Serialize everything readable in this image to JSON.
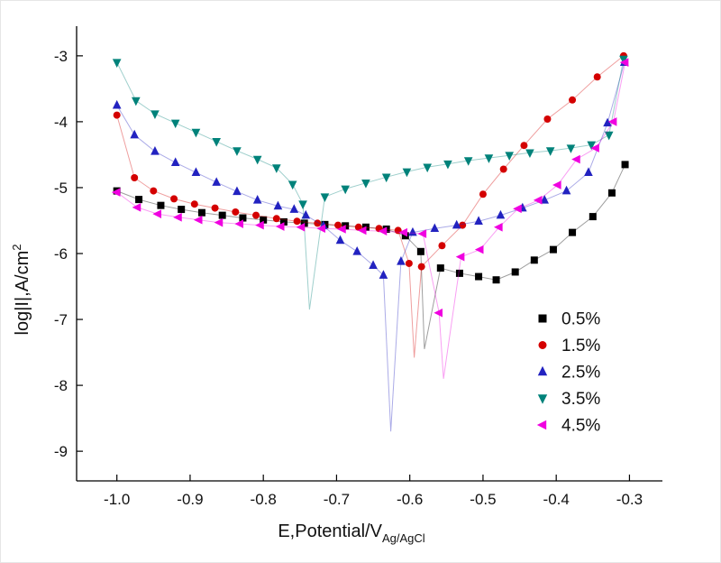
{
  "figure": {
    "background": "#ffffff",
    "border_color": "#e6e6e6"
  },
  "chart_data": {
    "type": "scatter",
    "title": "",
    "xlabel": {
      "text": "E,Potential/V",
      "subscript": "Ag/AgCl"
    },
    "ylabel": {
      "text": "log|I|,A/cm",
      "superscript": "2"
    },
    "xlim": [
      -1.055,
      -0.255
    ],
    "ylim": [
      -9.45,
      -2.55
    ],
    "grid": false,
    "axis_color": "#000000",
    "xticks": {
      "values": [
        -1.0,
        -0.9,
        -0.8,
        -0.7,
        -0.6,
        -0.5,
        -0.4,
        -0.3
      ],
      "labels": [
        "-1.0",
        "-0.9",
        "-0.8",
        "-0.7",
        "-0.6",
        "-0.5",
        "-0.4",
        "-0.3"
      ]
    },
    "yticks": {
      "values": [
        -9,
        -8,
        -7,
        -6,
        -5,
        -4,
        -3
      ],
      "labels": [
        "-9",
        "-8",
        "-7",
        "-6",
        "-5",
        "-4",
        "-3"
      ]
    },
    "legend": {
      "position": "inside-lower-right"
    },
    "series": [
      {
        "name": "0.5%",
        "marker": "square",
        "color": "#000000",
        "points": [
          [
            -1.0,
            -5.05
          ],
          [
            -0.97,
            -5.18
          ],
          [
            -0.94,
            -5.27
          ],
          [
            -0.912,
            -5.33
          ],
          [
            -0.884,
            -5.38
          ],
          [
            -0.856,
            -5.42
          ],
          [
            -0.828,
            -5.46
          ],
          [
            -0.8,
            -5.49
          ],
          [
            -0.772,
            -5.52
          ],
          [
            -0.744,
            -5.54
          ],
          [
            -0.716,
            -5.56
          ],
          [
            -0.688,
            -5.58
          ],
          [
            -0.66,
            -5.6
          ],
          [
            -0.632,
            -5.63
          ],
          [
            -0.606,
            -5.73
          ],
          [
            -0.585,
            -5.97
          ],
          [
            -0.58,
            -7.45,
            0
          ],
          [
            -0.558,
            -6.22
          ],
          [
            -0.532,
            -6.3
          ],
          [
            -0.506,
            -6.35
          ],
          [
            -0.482,
            -6.4
          ],
          [
            -0.456,
            -6.28
          ],
          [
            -0.43,
            -6.1
          ],
          [
            -0.404,
            -5.94
          ],
          [
            -0.378,
            -5.68
          ],
          [
            -0.35,
            -5.44
          ],
          [
            -0.324,
            -5.08
          ],
          [
            -0.306,
            -4.65
          ]
        ]
      },
      {
        "name": "1.5%",
        "marker": "circle",
        "color": "#d40000",
        "points": [
          [
            -1.0,
            -3.9
          ],
          [
            -0.976,
            -4.85
          ],
          [
            -0.95,
            -5.05
          ],
          [
            -0.922,
            -5.17
          ],
          [
            -0.894,
            -5.25
          ],
          [
            -0.866,
            -5.31
          ],
          [
            -0.838,
            -5.37
          ],
          [
            -0.81,
            -5.42
          ],
          [
            -0.782,
            -5.47
          ],
          [
            -0.754,
            -5.51
          ],
          [
            -0.726,
            -5.54
          ],
          [
            -0.698,
            -5.57
          ],
          [
            -0.67,
            -5.6
          ],
          [
            -0.642,
            -5.62
          ],
          [
            -0.616,
            -5.65
          ],
          [
            -0.601,
            -6.15
          ],
          [
            -0.594,
            -7.58,
            0
          ],
          [
            -0.584,
            -6.2
          ],
          [
            -0.556,
            -5.88
          ],
          [
            -0.528,
            -5.57
          ],
          [
            -0.5,
            -5.1
          ],
          [
            -0.472,
            -4.72
          ],
          [
            -0.444,
            -4.36
          ],
          [
            -0.412,
            -3.96
          ],
          [
            -0.378,
            -3.67
          ],
          [
            -0.344,
            -3.32
          ],
          [
            -0.308,
            -3.0
          ]
        ]
      },
      {
        "name": "2.5%",
        "marker": "triangle-up",
        "color": "#2222c0",
        "points": [
          [
            -1.0,
            -3.75
          ],
          [
            -0.976,
            -4.2
          ],
          [
            -0.948,
            -4.45
          ],
          [
            -0.92,
            -4.62
          ],
          [
            -0.892,
            -4.77
          ],
          [
            -0.864,
            -4.92
          ],
          [
            -0.836,
            -5.06
          ],
          [
            -0.808,
            -5.19
          ],
          [
            -0.78,
            -5.28
          ],
          [
            -0.758,
            -5.33
          ],
          [
            -0.742,
            -5.42
          ],
          [
            -0.718,
            -5.58
          ],
          [
            -0.695,
            -5.8
          ],
          [
            -0.672,
            -5.97
          ],
          [
            -0.65,
            -6.18
          ],
          [
            -0.636,
            -6.33
          ],
          [
            -0.626,
            -8.7,
            0
          ],
          [
            -0.612,
            -6.12
          ],
          [
            -0.596,
            -5.68
          ],
          [
            -0.566,
            -5.62
          ],
          [
            -0.536,
            -5.57
          ],
          [
            -0.506,
            -5.51
          ],
          [
            -0.476,
            -5.42
          ],
          [
            -0.446,
            -5.31
          ],
          [
            -0.416,
            -5.19
          ],
          [
            -0.386,
            -5.05
          ],
          [
            -0.356,
            -4.77
          ],
          [
            -0.33,
            -4.02
          ],
          [
            -0.307,
            -3.1
          ]
        ]
      },
      {
        "name": "3.5%",
        "marker": "triangle-down",
        "color": "#00827a",
        "points": [
          [
            -1.0,
            -3.1
          ],
          [
            -0.974,
            -3.68
          ],
          [
            -0.948,
            -3.88
          ],
          [
            -0.92,
            -4.02
          ],
          [
            -0.892,
            -4.16
          ],
          [
            -0.864,
            -4.3
          ],
          [
            -0.836,
            -4.44
          ],
          [
            -0.808,
            -4.57
          ],
          [
            -0.782,
            -4.7
          ],
          [
            -0.76,
            -4.95
          ],
          [
            -0.746,
            -5.25
          ],
          [
            -0.737,
            -6.85,
            0
          ],
          [
            -0.716,
            -5.14
          ],
          [
            -0.688,
            -5.02
          ],
          [
            -0.66,
            -4.93
          ],
          [
            -0.632,
            -4.84
          ],
          [
            -0.604,
            -4.76
          ],
          [
            -0.576,
            -4.69
          ],
          [
            -0.548,
            -4.64
          ],
          [
            -0.52,
            -4.59
          ],
          [
            -0.492,
            -4.55
          ],
          [
            -0.464,
            -4.51
          ],
          [
            -0.436,
            -4.47
          ],
          [
            -0.408,
            -4.44
          ],
          [
            -0.38,
            -4.4
          ],
          [
            -0.352,
            -4.35
          ],
          [
            -0.328,
            -4.2
          ],
          [
            -0.308,
            -3.05
          ]
        ]
      },
      {
        "name": "4.5%",
        "marker": "triangle-left",
        "color": "#f000e0",
        "points": [
          [
            -1.0,
            -5.07
          ],
          [
            -0.972,
            -5.3
          ],
          [
            -0.944,
            -5.4
          ],
          [
            -0.916,
            -5.45
          ],
          [
            -0.888,
            -5.49
          ],
          [
            -0.86,
            -5.53
          ],
          [
            -0.832,
            -5.55
          ],
          [
            -0.804,
            -5.57
          ],
          [
            -0.776,
            -5.59
          ],
          [
            -0.748,
            -5.6
          ],
          [
            -0.72,
            -5.62
          ],
          [
            -0.692,
            -5.63
          ],
          [
            -0.664,
            -5.65
          ],
          [
            -0.636,
            -5.66
          ],
          [
            -0.608,
            -5.68
          ],
          [
            -0.582,
            -5.7
          ],
          [
            -0.56,
            -6.9
          ],
          [
            -0.554,
            -7.9,
            0
          ],
          [
            -0.53,
            -6.05
          ],
          [
            -0.504,
            -5.94
          ],
          [
            -0.478,
            -5.6
          ],
          [
            -0.452,
            -5.32
          ],
          [
            -0.424,
            -5.19
          ],
          [
            -0.398,
            -4.96
          ],
          [
            -0.372,
            -4.57
          ],
          [
            -0.346,
            -4.4
          ],
          [
            -0.322,
            -4.0
          ],
          [
            -0.306,
            -3.1
          ]
        ]
      }
    ]
  }
}
